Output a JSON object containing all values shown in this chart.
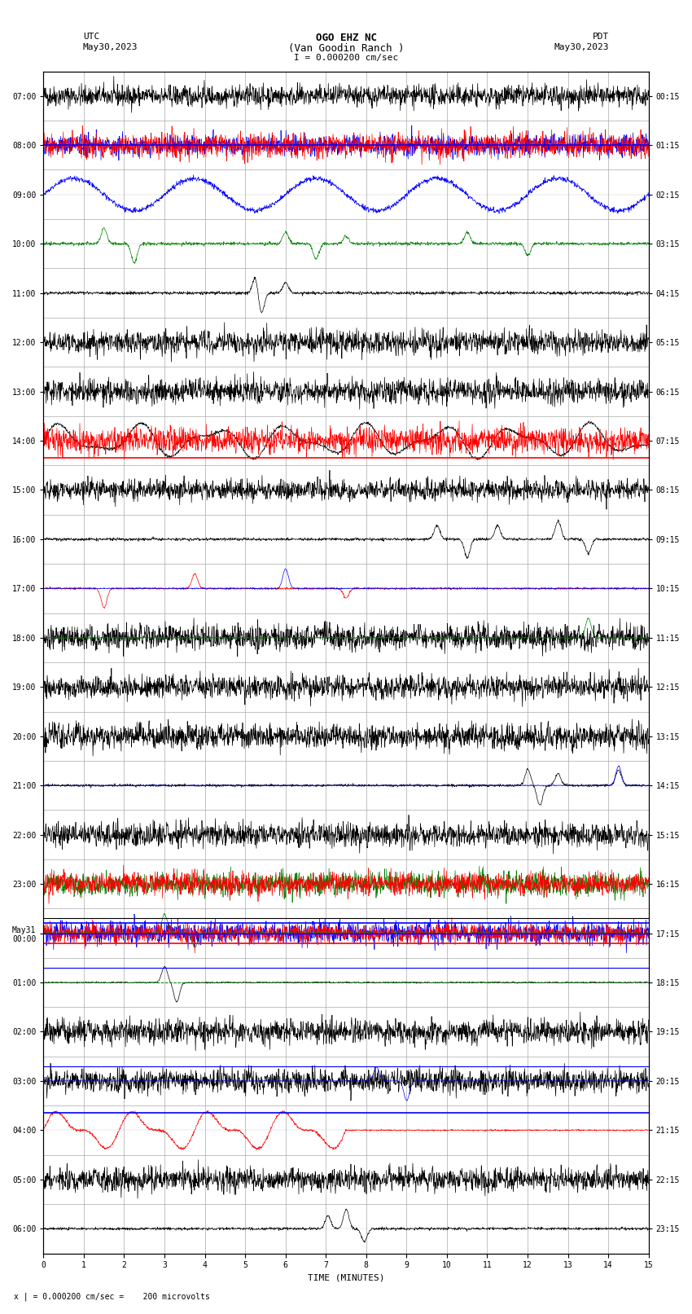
{
  "title_line1": "OGO EHZ NC",
  "title_line2": "(Van Goodin Ranch )",
  "title_line3": "I = 0.000200 cm/sec",
  "left_label": "UTC",
  "left_date": "May30,2023",
  "right_label": "PDT",
  "right_date": "May30,2023",
  "xlabel": "TIME (MINUTES)",
  "footer": "x | = 0.000200 cm/sec =    200 microvolts",
  "xlim": [
    0,
    15
  ],
  "utc_times": [
    "07:00",
    "08:00",
    "09:00",
    "10:00",
    "11:00",
    "12:00",
    "13:00",
    "14:00",
    "15:00",
    "16:00",
    "17:00",
    "18:00",
    "19:00",
    "20:00",
    "21:00",
    "22:00",
    "23:00",
    "May31\n00:00",
    "01:00",
    "02:00",
    "03:00",
    "04:00",
    "05:00",
    "06:00"
  ],
  "pdt_times": [
    "00:15",
    "01:15",
    "02:15",
    "03:15",
    "04:15",
    "05:15",
    "06:15",
    "07:15",
    "08:15",
    "09:15",
    "10:15",
    "11:15",
    "12:15",
    "13:15",
    "14:15",
    "15:15",
    "16:15",
    "17:15",
    "18:15",
    "19:15",
    "20:15",
    "21:15",
    "22:15",
    "23:15"
  ],
  "bg_color": "#ffffff",
  "grid_color": "#aaaaaa",
  "trace_colors": {
    "black": "#000000",
    "blue": "#0000ff",
    "red": "#ff0000",
    "green": "#008000"
  },
  "num_rows": 24,
  "minutes": 15,
  "noise_seed": 42
}
